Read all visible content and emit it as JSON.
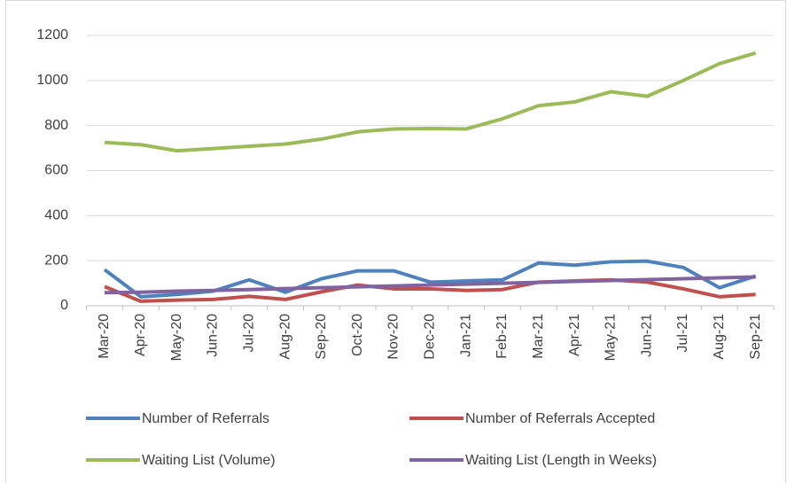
{
  "chart_data": {
    "type": "line",
    "categories": [
      "Mar-20",
      "Apr-20",
      "May-20",
      "Jun-20",
      "Jul-20",
      "Aug-20",
      "Sep-20",
      "Oct-20",
      "Nov-20",
      "Dec-20",
      "Jan-21",
      "Feb-21",
      "Mar-21",
      "Apr-21",
      "May-21",
      "Jun-21",
      "Jul-21",
      "Aug-21",
      "Sep-21"
    ],
    "series": [
      {
        "name": "Number of Referrals",
        "color": "#4f81bd",
        "values": [
          160,
          40,
          50,
          65,
          115,
          60,
          120,
          155,
          155,
          105,
          110,
          115,
          190,
          180,
          195,
          198,
          170,
          80,
          132
        ]
      },
      {
        "name": "Number of Referrals Accepted",
        "color": "#c0504d",
        "values": [
          85,
          20,
          25,
          28,
          42,
          28,
          62,
          92,
          75,
          75,
          68,
          72,
          105,
          110,
          115,
          105,
          75,
          40,
          50
        ]
      },
      {
        "name": "Waiting List (Volume)",
        "color": "#9bbb59",
        "values": [
          725,
          715,
          688,
          698,
          708,
          718,
          740,
          772,
          785,
          787,
          785,
          830,
          888,
          905,
          950,
          930,
          1000,
          1075,
          1122
        ]
      },
      {
        "name": "Waiting List (Length in Weeks)",
        "color": "#8064a2",
        "values": [
          58,
          60,
          65,
          68,
          72,
          76,
          80,
          84,
          88,
          92,
          96,
          100,
          104,
          108,
          112,
          116,
          120,
          124,
          128
        ]
      }
    ],
    "ylim": [
      0,
      1200
    ],
    "yticks": [
      0,
      200,
      400,
      600,
      800,
      1000,
      1200
    ],
    "grid": true,
    "legend": "bottom"
  }
}
